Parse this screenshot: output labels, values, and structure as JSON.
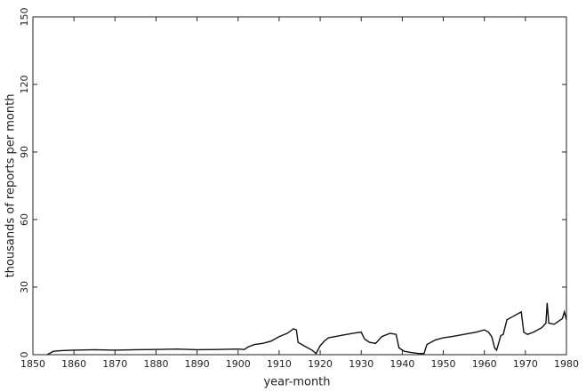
{
  "chart_data": {
    "type": "line",
    "xlabel": "year-month",
    "ylabel": "thousands of reports per month",
    "x": [
      1853.5,
      1854,
      1855,
      1857,
      1860,
      1865,
      1870,
      1875,
      1880,
      1885,
      1890,
      1895,
      1900,
      1901.5,
      1902.5,
      1904,
      1906,
      1908,
      1910,
      1912,
      1913.5,
      1914.2,
      1914.6,
      1916,
      1918,
      1919,
      1920,
      1921,
      1922,
      1925,
      1928,
      1930,
      1930.8,
      1932,
      1933.5,
      1935,
      1937,
      1938.5,
      1939.2,
      1940.5,
      1942,
      1944,
      1945.3,
      1946,
      1948,
      1950,
      1952,
      1955,
      1958,
      1960,
      1961,
      1961.8,
      1962.5,
      1963,
      1964,
      1964.6,
      1965.5,
      1967,
      1969,
      1969.6,
      1970.5,
      1972,
      1974,
      1975,
      1975.3,
      1975.7,
      1977,
      1979,
      1979.5,
      1980
    ],
    "series": [
      {
        "name": "reports",
        "color": "#111111",
        "values": [
          0,
          0.5,
          1.5,
          1.8,
          2,
          2.2,
          2,
          2.2,
          2.3,
          2.5,
          2.2,
          2.3,
          2.5,
          2.3,
          3.5,
          4.5,
          5,
          6,
          8,
          9.5,
          11.5,
          11,
          5.5,
          4,
          2,
          0.5,
          4,
          6,
          7.5,
          8.5,
          9.5,
          10,
          7,
          5.5,
          5,
          8,
          9.5,
          9,
          3,
          1.5,
          1,
          0.5,
          0.5,
          4.5,
          6.5,
          7.5,
          8,
          9,
          10,
          11,
          10,
          8,
          3,
          2,
          8.5,
          9,
          15.5,
          17,
          19,
          10,
          9,
          10,
          12,
          14,
          23,
          14,
          13.5,
          16,
          19,
          15.5
        ]
      }
    ],
    "xlim": [
      1850,
      1980
    ],
    "xticks": [
      1850,
      1860,
      1870,
      1880,
      1890,
      1900,
      1910,
      1920,
      1930,
      1940,
      1950,
      1960,
      1970,
      1980
    ],
    "ylim": [
      0,
      150
    ],
    "yticks": [
      0,
      30,
      60,
      90,
      120,
      150
    ]
  }
}
